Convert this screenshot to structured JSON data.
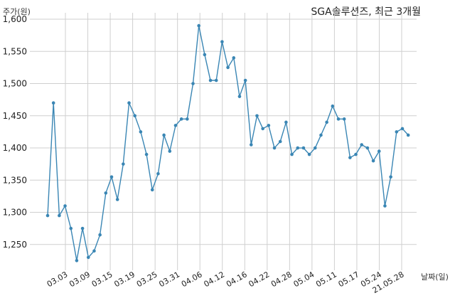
{
  "chart_data": {
    "type": "line",
    "title": "SGA솔루션즈, 최근 3개월",
    "ylabel": "주가(원)",
    "xlabel": "날짜(일)",
    "ylim": [
      1210,
      1610
    ],
    "yticks": [
      1250,
      1300,
      1350,
      1400,
      1450,
      1500,
      1550,
      1600
    ],
    "ytick_labels": [
      "1,250",
      "1,300",
      "1,350",
      "1,400",
      "1,450",
      "1,500",
      "1,550",
      "1,600"
    ],
    "xtick_labels": [
      "03.03",
      "03.09",
      "03.15",
      "03.19",
      "03.25",
      "03.31",
      "04.06",
      "04.12",
      "04.16",
      "04.22",
      "04.28",
      "05.04",
      "05.11",
      "05.17",
      "05.24",
      "21.05.28"
    ],
    "grid": true,
    "line_color": "#3a86b4",
    "series": [
      {
        "values": [
          1295,
          1470,
          1295,
          1310,
          1275,
          1225,
          1275,
          1230,
          1240,
          1265,
          1330,
          1355,
          1320,
          1375,
          1470,
          1450,
          1425,
          1390,
          1335,
          1360,
          1420,
          1395,
          1435,
          1445,
          1445,
          1500,
          1590,
          1545,
          1505,
          1505,
          1565,
          1525,
          1540,
          1480,
          1505,
          1405,
          1450,
          1430,
          1435,
          1400,
          1410,
          1440,
          1390,
          1400,
          1400,
          1390,
          1400,
          1420,
          1440,
          1465,
          1445,
          1445,
          1385,
          1390,
          1405,
          1400,
          1380,
          1395,
          1310,
          1355,
          1425,
          1430,
          1420
        ]
      }
    ]
  }
}
